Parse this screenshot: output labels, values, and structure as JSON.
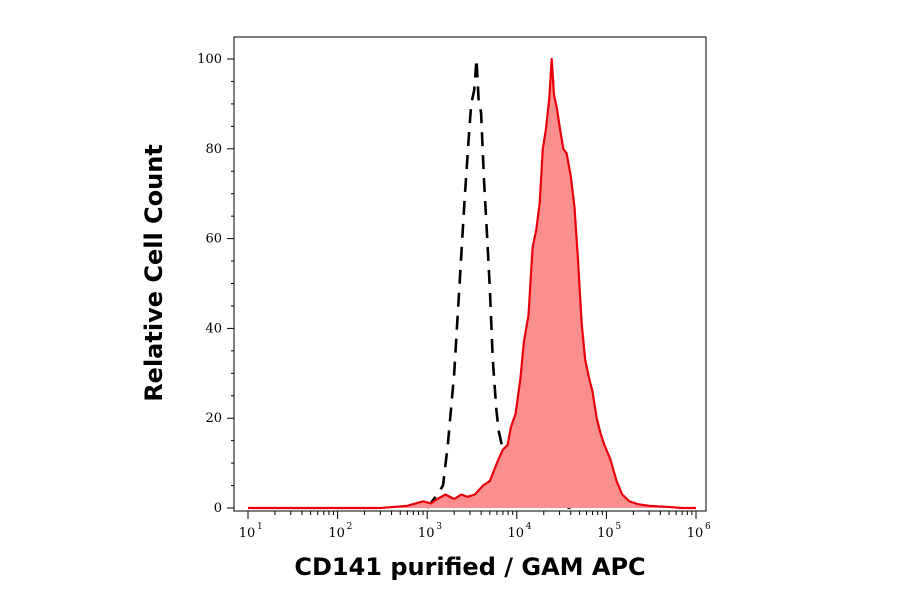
{
  "chart_data": {
    "type": "area",
    "xlabel": "CD141 purified / GAM APC",
    "ylabel": "Relative Cell Count",
    "xscale": "log",
    "xlim": [
      10,
      1000000
    ],
    "ylim": [
      0,
      105
    ],
    "x_ticks": [
      {
        "base": "10",
        "exp": "1",
        "value": 10
      },
      {
        "base": "10",
        "exp": "2",
        "value": 100
      },
      {
        "base": "10",
        "exp": "3",
        "value": 1000
      },
      {
        "base": "10",
        "exp": "4",
        "value": 10000
      },
      {
        "base": "10",
        "exp": "5",
        "value": 100000
      },
      {
        "base": "10",
        "exp": "6",
        "value": 1000000
      }
    ],
    "y_ticks": [
      "0",
      "20",
      "40",
      "60",
      "80",
      "100"
    ],
    "grid": false,
    "series": [
      {
        "role": "negative-control",
        "color": "#000000",
        "style": "dashed",
        "filled": false,
        "points": [
          [
            1000,
            0
          ],
          [
            1300,
            3
          ],
          [
            1500,
            5
          ],
          [
            1700,
            14
          ],
          [
            2000,
            30
          ],
          [
            2300,
            50
          ],
          [
            2600,
            68
          ],
          [
            2900,
            82
          ],
          [
            3100,
            90
          ],
          [
            3350,
            93
          ],
          [
            3550,
            100
          ],
          [
            3750,
            91
          ],
          [
            4000,
            88
          ],
          [
            4300,
            73
          ],
          [
            4650,
            61
          ],
          [
            5000,
            49
          ],
          [
            5400,
            33
          ],
          [
            5900,
            22
          ],
          [
            6300,
            17
          ],
          [
            7000,
            13
          ],
          [
            8000,
            10
          ],
          [
            9000,
            7
          ],
          [
            11000,
            4
          ],
          [
            13000,
            3
          ],
          [
            15000,
            2
          ],
          [
            18000,
            1.5
          ],
          [
            21000,
            0.8
          ],
          [
            27000,
            0.5
          ],
          [
            40000,
            0
          ]
        ]
      },
      {
        "role": "sample",
        "color": "#e8000b",
        "fill": "#fb8f8f",
        "style": "solid",
        "filled": true,
        "points": [
          [
            10,
            0
          ],
          [
            100,
            0
          ],
          [
            300,
            0
          ],
          [
            600,
            0.5
          ],
          [
            900,
            1.5
          ],
          [
            1100,
            1
          ],
          [
            1300,
            2
          ],
          [
            1600,
            3
          ],
          [
            2000,
            2
          ],
          [
            2400,
            3
          ],
          [
            2800,
            2.5
          ],
          [
            3400,
            3
          ],
          [
            4200,
            5
          ],
          [
            5000,
            6
          ],
          [
            6000,
            10
          ],
          [
            7000,
            13
          ],
          [
            7900,
            14
          ],
          [
            8600,
            18
          ],
          [
            9700,
            21
          ],
          [
            11000,
            29
          ],
          [
            12000,
            37
          ],
          [
            13500,
            43
          ],
          [
            15000,
            58
          ],
          [
            16500,
            62
          ],
          [
            18000,
            68
          ],
          [
            19500,
            80
          ],
          [
            21000,
            84
          ],
          [
            23000,
            91
          ],
          [
            24500,
            100
          ],
          [
            26000,
            92
          ],
          [
            28000,
            89
          ],
          [
            30000,
            85
          ],
          [
            33000,
            80
          ],
          [
            36000,
            79
          ],
          [
            40000,
            74
          ],
          [
            44000,
            67
          ],
          [
            48000,
            56
          ],
          [
            53000,
            41
          ],
          [
            58000,
            33
          ],
          [
            64000,
            29
          ],
          [
            70000,
            26
          ],
          [
            78000,
            20
          ],
          [
            85000,
            17
          ],
          [
            95000,
            14
          ],
          [
            110000,
            11
          ],
          [
            130000,
            6
          ],
          [
            150000,
            3
          ],
          [
            180000,
            1.5
          ],
          [
            230000,
            0.8
          ],
          [
            300000,
            0.5
          ],
          [
            450000,
            0.3
          ],
          [
            700000,
            0
          ],
          [
            1000000,
            0
          ]
        ]
      }
    ]
  }
}
